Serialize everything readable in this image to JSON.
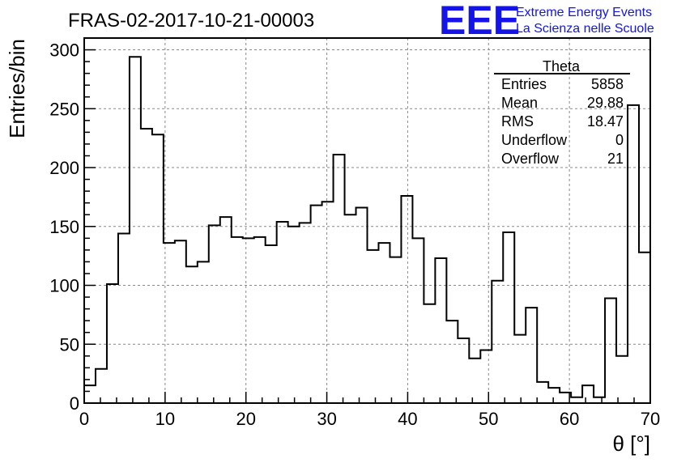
{
  "header": {
    "title": "FRAS-02-2017-10-21-00003",
    "logo_text": "EEE",
    "logo_line1": "Extreme Energy Events",
    "logo_line2": "La Scienza nelle Scuole",
    "logo_color": "#1414e6"
  },
  "stats": {
    "name": "Theta",
    "rows": [
      {
        "label": "Entries",
        "value": "5858"
      },
      {
        "label": "Mean",
        "value": "29.88"
      },
      {
        "label": "RMS",
        "value": "18.47"
      },
      {
        "label": "Underflow",
        "value": "0"
      },
      {
        "label": "Overflow",
        "value": "21"
      }
    ]
  },
  "chart_data": {
    "type": "histogram",
    "title": "FRAS-02-2017-10-21-00003",
    "xlabel": "θ [°]",
    "ylabel": "Entries/bin",
    "xlim": [
      0,
      70
    ],
    "ylim": [
      0,
      310
    ],
    "bin_width": 1.4,
    "xticks": [
      0,
      10,
      20,
      30,
      40,
      50,
      60,
      70
    ],
    "yticks": [
      0,
      50,
      100,
      150,
      200,
      250,
      300
    ],
    "grid": true,
    "bins_start": [
      0.0,
      1.4,
      2.8,
      4.2,
      5.6,
      7.0,
      8.4,
      9.8,
      11.2,
      12.6,
      14.0,
      15.4,
      16.8,
      18.2,
      19.6,
      21.0,
      22.4,
      23.8,
      25.2,
      26.6,
      28.0,
      29.4,
      30.8,
      32.2,
      33.6,
      35.0,
      36.4,
      37.8,
      39.2,
      40.6,
      42.0,
      43.4,
      44.8,
      46.2,
      47.6,
      49.0,
      50.4,
      51.8,
      53.2,
      54.6,
      56.0,
      57.4,
      58.8,
      60.2,
      61.6,
      63.0,
      64.4,
      65.8,
      67.2,
      68.6
    ],
    "values": [
      15,
      29,
      101,
      144,
      294,
      233,
      228,
      136,
      138,
      116,
      120,
      151,
      158,
      141,
      140,
      141,
      134,
      154,
      150,
      153,
      168,
      171,
      211,
      160,
      166,
      130,
      136,
      124,
      176,
      140,
      84,
      123,
      70,
      55,
      38,
      45,
      104,
      145,
      58,
      81,
      18,
      13,
      9,
      5,
      15,
      5,
      89,
      40,
      253,
      128
    ]
  }
}
